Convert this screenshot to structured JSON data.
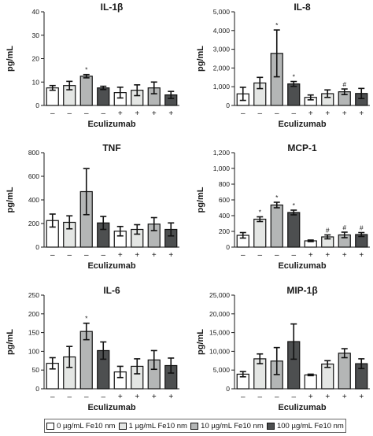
{
  "colors": {
    "dose0": "#ffffff",
    "dose1": "#e4e6e4",
    "dose10": "#b4b6b6",
    "dose100": "#4d4f50",
    "axis": "#1a1a1a"
  },
  "legend": [
    {
      "label": "0 µg/mL Fe10 nm",
      "color": "#ffffff"
    },
    {
      "label": "1 µg/mL Fe10 nm",
      "color": "#e4e6e4"
    },
    {
      "label": "10 µg/mL Fe10 nm",
      "color": "#b4b6b6"
    },
    {
      "label": "100 µg/mL Fe10 nm",
      "color": "#4d4f50"
    }
  ],
  "chart_data": [
    {
      "type": "bar",
      "title": "IL-1β",
      "ylabel": "pg/mL",
      "xlabel": "Eculizumab",
      "ylim": [
        0,
        40
      ],
      "yticks": [
        0,
        10,
        20,
        30,
        40
      ],
      "ytick_labels": [
        "0",
        "10",
        "20",
        "30",
        "40"
      ],
      "categories": [
        "–",
        "–",
        "–",
        "–",
        "+",
        "+",
        "+",
        "+"
      ],
      "values": [
        7.5,
        8.5,
        12.5,
        7.5,
        5.5,
        6.5,
        7.5,
        4.5
      ],
      "errors": [
        1,
        1.8,
        0.7,
        0.7,
        2.3,
        2.3,
        2.5,
        1.5
      ],
      "marks": [
        "",
        "",
        "*",
        "",
        "",
        "",
        "",
        ""
      ],
      "colors": [
        "#ffffff",
        "#e4e6e4",
        "#b4b6b6",
        "#4d4f50",
        "#ffffff",
        "#e4e6e4",
        "#b4b6b6",
        "#4d4f50"
      ]
    },
    {
      "type": "bar",
      "title": "IL-8",
      "ylabel": "pg/mL",
      "xlabel": "Eculizumab",
      "ylim": [
        0,
        5000
      ],
      "yticks": [
        0,
        1000,
        2000,
        3000,
        4000,
        5000
      ],
      "ytick_labels": [
        "0",
        "1,000",
        "2,000",
        "3,000",
        "4,000",
        "5,000"
      ],
      "categories": [
        "–",
        "–",
        "–",
        "–",
        "+",
        "+",
        "+",
        "+"
      ],
      "values": [
        620,
        1200,
        2780,
        1150,
        430,
        630,
        730,
        640
      ],
      "errors": [
        350,
        300,
        1250,
        130,
        130,
        200,
        150,
        270
      ],
      "marks": [
        "",
        "",
        "*",
        "*",
        "",
        "",
        "#",
        ""
      ],
      "colors": [
        "#ffffff",
        "#e4e6e4",
        "#b4b6b6",
        "#4d4f50",
        "#ffffff",
        "#e4e6e4",
        "#b4b6b6",
        "#4d4f50"
      ]
    },
    {
      "type": "bar",
      "title": "TNF",
      "ylabel": "pg/mL",
      "xlabel": "Eculizumab",
      "ylim": [
        0,
        800
      ],
      "yticks": [
        0,
        200,
        400,
        600,
        800
      ],
      "ytick_labels": [
        "0",
        "200",
        "400",
        "600",
        "800"
      ],
      "categories": [
        "–",
        "–",
        "–",
        "–",
        "+",
        "+",
        "+",
        "+"
      ],
      "values": [
        225,
        210,
        470,
        205,
        135,
        150,
        195,
        150
      ],
      "errors": [
        55,
        55,
        195,
        55,
        40,
        40,
        55,
        55
      ],
      "marks": [
        "",
        "",
        "",
        "",
        "",
        "",
        "",
        ""
      ],
      "colors": [
        "#ffffff",
        "#e4e6e4",
        "#b4b6b6",
        "#4d4f50",
        "#ffffff",
        "#e4e6e4",
        "#b4b6b6",
        "#4d4f50"
      ]
    },
    {
      "type": "bar",
      "title": "MCP-1",
      "ylabel": "pg/mL",
      "xlabel": "Eculizumab",
      "ylim": [
        0,
        1200
      ],
      "yticks": [
        0,
        200,
        400,
        600,
        800,
        1000,
        1200
      ],
      "ytick_labels": [
        "0",
        "200",
        "400",
        "600",
        "800",
        "1,000",
        "1,200"
      ],
      "categories": [
        "–",
        "–",
        "–",
        "–",
        "+",
        "+",
        "+",
        "+"
      ],
      "values": [
        150,
        355,
        535,
        440,
        80,
        130,
        155,
        160
      ],
      "errors": [
        35,
        30,
        35,
        30,
        10,
        25,
        35,
        25
      ],
      "marks": [
        "",
        "*",
        "*",
        "*",
        "",
        "#",
        "#",
        "#"
      ],
      "colors": [
        "#ffffff",
        "#e4e6e4",
        "#b4b6b6",
        "#4d4f50",
        "#ffffff",
        "#e4e6e4",
        "#b4b6b6",
        "#4d4f50"
      ]
    },
    {
      "type": "bar",
      "title": "IL-6",
      "ylabel": "pg/mL",
      "xlabel": "Eculizumab",
      "ylim": [
        0,
        250
      ],
      "yticks": [
        0,
        50,
        100,
        150,
        200,
        250
      ],
      "ytick_labels": [
        "0",
        "50",
        "100",
        "150",
        "200",
        "250"
      ],
      "categories": [
        "–",
        "–",
        "–",
        "–",
        "+",
        "+",
        "+",
        "+"
      ],
      "values": [
        68,
        85,
        153,
        102,
        45,
        60,
        77,
        62
      ],
      "errors": [
        15,
        28,
        22,
        23,
        15,
        20,
        25,
        20
      ],
      "marks": [
        "",
        "",
        "*",
        "",
        "",
        "",
        "",
        ""
      ],
      "colors": [
        "#ffffff",
        "#e4e6e4",
        "#b4b6b6",
        "#4d4f50",
        "#ffffff",
        "#e4e6e4",
        "#b4b6b6",
        "#4d4f50"
      ]
    },
    {
      "type": "bar",
      "title": "MIP-1β",
      "ylabel": "pg/mL",
      "xlabel": "Eculizumab",
      "ylim": [
        0,
        25000
      ],
      "yticks": [
        0,
        5000,
        10000,
        15000,
        20000,
        25000
      ],
      "ytick_labels": [
        "0",
        "5,000",
        "10,000",
        "15,000",
        "20,000",
        "25,000"
      ],
      "categories": [
        "–",
        "–",
        "–",
        "–",
        "+",
        "+",
        "+",
        "+"
      ],
      "values": [
        3900,
        8000,
        7400,
        12600,
        3700,
        6600,
        9500,
        6700
      ],
      "errors": [
        700,
        1300,
        3600,
        4700,
        200,
        900,
        1200,
        1300
      ],
      "marks": [
        "",
        "",
        "",
        "",
        "",
        "",
        "",
        ""
      ],
      "colors": [
        "#ffffff",
        "#e4e6e4",
        "#b4b6b6",
        "#4d4f50",
        "#ffffff",
        "#e4e6e4",
        "#b4b6b6",
        "#4d4f50"
      ]
    }
  ]
}
